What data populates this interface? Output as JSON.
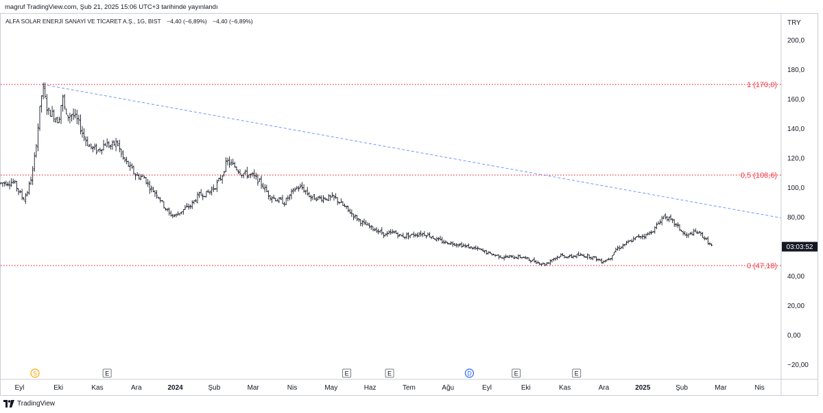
{
  "header": {
    "credit": "magruf TradingView.com, Şub 21, 2025 15:06 UTC+3 tarihinde yayınlandı"
  },
  "legend": {
    "symbol": "ALFA SOLAR ENERJİ SANAYİ VE TİCARET A.Ş., 1G, BIST",
    "change1": "−4,40 (−6,89%)",
    "change2": "−4,40 (−6,89%)"
  },
  "brand": {
    "name": "TradingView"
  },
  "colors": {
    "fib": "#f23645",
    "trend": "#2962ff",
    "candle": "#131722",
    "grid": "#e0e3eb",
    "dividend": "#f7a600",
    "event": "#787b86"
  },
  "chart_data": {
    "type": "line",
    "style": "ohlc-bars",
    "currency": "TRY",
    "ylim": [
      -30,
      218
    ],
    "y_ticks": [
      200,
      180,
      160,
      140,
      120,
      100,
      80,
      60,
      40,
      20,
      0,
      -20
    ],
    "y_tick_labels": [
      "200,0",
      "180,0",
      "160,0",
      "140,0",
      "120,0",
      "100,0",
      "80,00",
      "60,00",
      "40,00",
      "20,00",
      "0,00",
      "−20,00"
    ],
    "price_label": "03:03:52",
    "last_price": 60,
    "x_ticks": [
      {
        "label": "Eyl",
        "bold": false
      },
      {
        "label": "Eki",
        "bold": false
      },
      {
        "label": "Kas",
        "bold": false
      },
      {
        "label": "Ara",
        "bold": false
      },
      {
        "label": "2024",
        "bold": true
      },
      {
        "label": "Şub",
        "bold": false
      },
      {
        "label": "Mar",
        "bold": false
      },
      {
        "label": "Nis",
        "bold": false
      },
      {
        "label": "May",
        "bold": false
      },
      {
        "label": "Haz",
        "bold": false
      },
      {
        "label": "Tem",
        "bold": false
      },
      {
        "label": "Ağu",
        "bold": false
      },
      {
        "label": "Eyl",
        "bold": false
      },
      {
        "label": "Eki",
        "bold": false
      },
      {
        "label": "Kas",
        "bold": false
      },
      {
        "label": "Ara",
        "bold": false
      },
      {
        "label": "2025",
        "bold": true
      },
      {
        "label": "Şub",
        "bold": false
      },
      {
        "label": "Mar",
        "bold": false
      },
      {
        "label": "Nis",
        "bold": false
      }
    ],
    "x_tick_pos": [
      0.5,
      1.5,
      2.5,
      3.5,
      4.5,
      5.5,
      6.5,
      7.5,
      8.5,
      9.5,
      10.5,
      11.5,
      12.5,
      13.5,
      14.5,
      15.5,
      16.5,
      17.5,
      18.5,
      19.5
    ],
    "fib_levels": [
      {
        "level": 170.0,
        "label": "1 (170,0)"
      },
      {
        "level": 108.6,
        "label": "0,5 (108,6)"
      },
      {
        "level": 47.18,
        "label": "0 (47,18)"
      }
    ],
    "trendline": {
      "x1": 1.1,
      "y1": 170.0,
      "x2": 20.05,
      "y2": 79.5
    },
    "price_path": [
      [
        0.0,
        103
      ],
      [
        0.35,
        104
      ],
      [
        0.6,
        92
      ],
      [
        0.7,
        97
      ],
      [
        0.85,
        112
      ],
      [
        0.97,
        140
      ],
      [
        1.05,
        160
      ],
      [
        1.1,
        168
      ],
      [
        1.22,
        152
      ],
      [
        1.35,
        150
      ],
      [
        1.5,
        145
      ],
      [
        1.6,
        162
      ],
      [
        1.7,
        148
      ],
      [
        1.85,
        150
      ],
      [
        2.0,
        145
      ],
      [
        2.15,
        135
      ],
      [
        2.3,
        128
      ],
      [
        2.5,
        125
      ],
      [
        2.7,
        130
      ],
      [
        2.85,
        128
      ],
      [
        3.0,
        131
      ],
      [
        3.15,
        120
      ],
      [
        3.3,
        115
      ],
      [
        3.5,
        108
      ],
      [
        3.7,
        107
      ],
      [
        3.85,
        100
      ],
      [
        4.05,
        95
      ],
      [
        4.2,
        88
      ],
      [
        4.35,
        82
      ],
      [
        4.5,
        81
      ],
      [
        4.7,
        85
      ],
      [
        4.9,
        88
      ],
      [
        5.1,
        95
      ],
      [
        5.3,
        96
      ],
      [
        5.5,
        100
      ],
      [
        5.7,
        108
      ],
      [
        5.82,
        118
      ],
      [
        6.0,
        115
      ],
      [
        6.2,
        110
      ],
      [
        6.5,
        108
      ],
      [
        6.7,
        103
      ],
      [
        6.9,
        95
      ],
      [
        7.1,
        92
      ],
      [
        7.3,
        90
      ],
      [
        7.45,
        95
      ],
      [
        7.6,
        100
      ],
      [
        7.75,
        100
      ],
      [
        8.0,
        93
      ],
      [
        8.2,
        93
      ],
      [
        8.45,
        93
      ],
      [
        8.6,
        93
      ],
      [
        8.8,
        88
      ],
      [
        9.0,
        83
      ],
      [
        9.3,
        76
      ],
      [
        9.6,
        72
      ],
      [
        9.9,
        68
      ],
      [
        10.1,
        70
      ],
      [
        10.3,
        67
      ],
      [
        10.6,
        68
      ],
      [
        10.8,
        69
      ],
      [
        11.0,
        68
      ],
      [
        11.2,
        65
      ],
      [
        11.4,
        63
      ],
      [
        11.7,
        62
      ],
      [
        12.0,
        60
      ],
      [
        12.3,
        58
      ],
      [
        12.6,
        55
      ],
      [
        12.9,
        53
      ],
      [
        13.2,
        53
      ],
      [
        13.4,
        53
      ],
      [
        13.6,
        51
      ],
      [
        13.85,
        49
      ],
      [
        14.0,
        48
      ],
      [
        14.2,
        52
      ],
      [
        14.4,
        54
      ],
      [
        14.6,
        53
      ],
      [
        14.8,
        54
      ],
      [
        15.0,
        54
      ],
      [
        15.2,
        53
      ],
      [
        15.45,
        50
      ],
      [
        15.65,
        52
      ],
      [
        15.8,
        58
      ],
      [
        16.0,
        61
      ],
      [
        16.2,
        64
      ],
      [
        16.4,
        67
      ],
      [
        16.6,
        68
      ],
      [
        16.8,
        72
      ],
      [
        16.95,
        78
      ],
      [
        17.05,
        81
      ],
      [
        17.15,
        79
      ],
      [
        17.3,
        76
      ],
      [
        17.45,
        72
      ],
      [
        17.6,
        67
      ],
      [
        17.75,
        69
      ],
      [
        17.9,
        70
      ],
      [
        18.05,
        67
      ],
      [
        18.2,
        62
      ],
      [
        18.3,
        60
      ]
    ],
    "events": [
      {
        "type": "dividend",
        "label": "S",
        "x": 0.0
      },
      {
        "type": "earnings",
        "label": "E",
        "x": 2.75
      },
      {
        "type": "earnings",
        "label": "E",
        "x": 8.9
      },
      {
        "type": "earnings",
        "label": "E",
        "x": 10.0
      },
      {
        "type": "split",
        "label": "D",
        "x": 12.05
      },
      {
        "type": "earnings",
        "label": "E",
        "x": 13.25
      },
      {
        "type": "earnings",
        "label": "E",
        "x": 14.8
      }
    ]
  }
}
